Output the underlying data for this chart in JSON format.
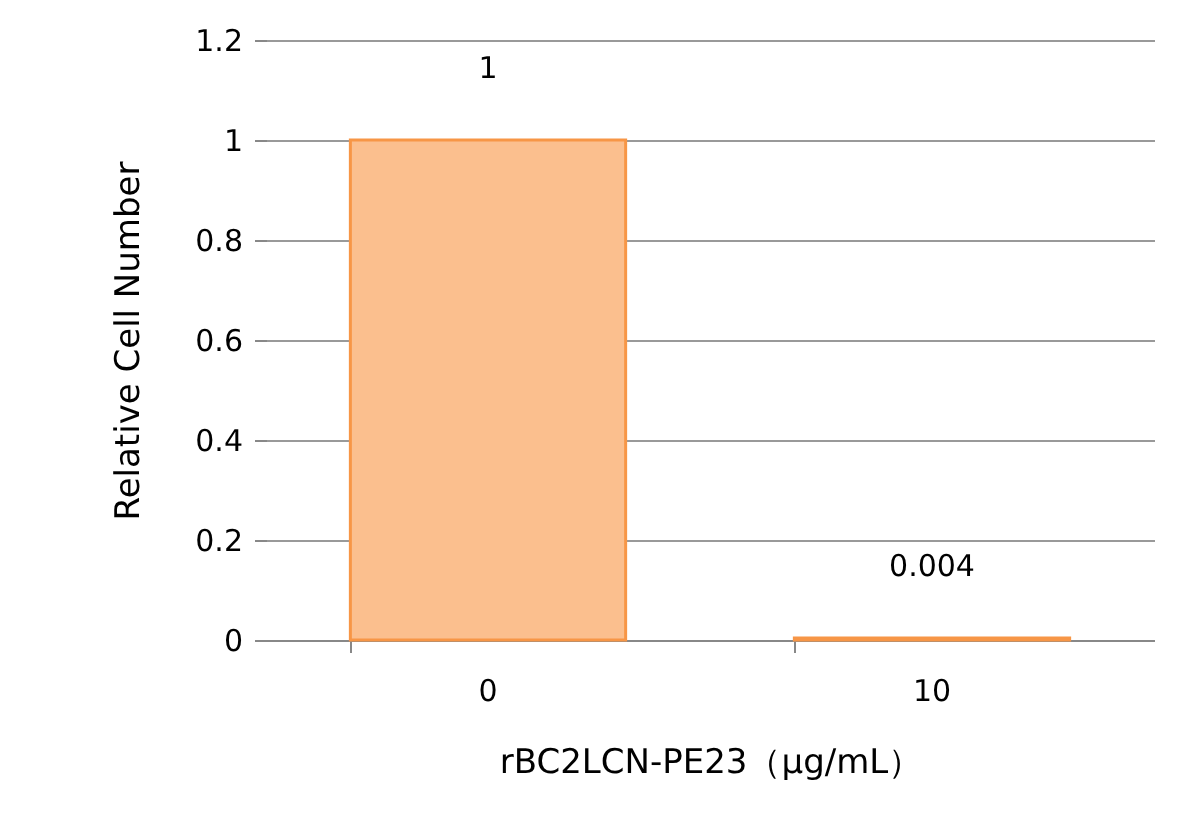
{
  "chart_data": {
    "type": "bar",
    "xlabel": "rBC2LCN-PE23（µg/mL）",
    "ylabel": "Relative Cell Number",
    "categories": [
      "0",
      "10"
    ],
    "values": [
      1,
      0.004
    ],
    "color": "#fbbf8e",
    "ylim": [
      0,
      1.2
    ],
    "yticks": [
      0,
      0.2,
      0.4,
      0.6,
      0.8,
      1,
      1.2
    ],
    "grid": "y",
    "data_labels": true
  }
}
